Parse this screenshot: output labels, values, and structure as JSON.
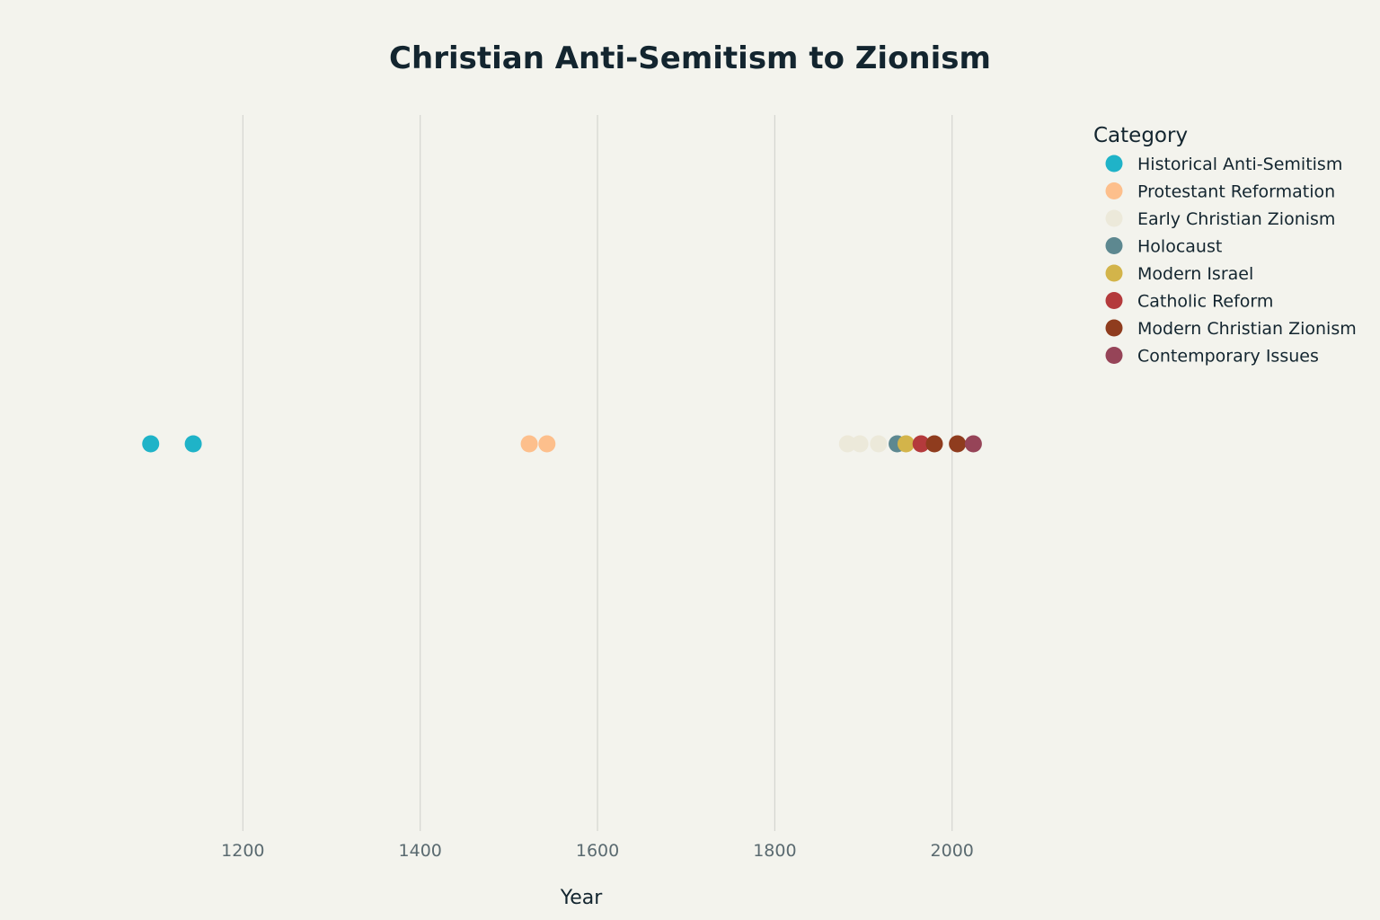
{
  "chart_data": {
    "type": "scatter",
    "title": "Christian Anti-Semitism to Zionism",
    "xlabel": "Year",
    "ylabel": "",
    "xlim": [
      1076,
      2130
    ],
    "xticks": [
      1200,
      1400,
      1600,
      1800,
      2000
    ],
    "grid": true,
    "legend_title": "Category",
    "legend_position": "top-right",
    "series": [
      {
        "name": "Historical Anti-Semitism",
        "color": "#1fb3c8",
        "x": [
          1096,
          1144
        ]
      },
      {
        "name": "Protestant Reformation",
        "color": "#fdbf8c",
        "x": [
          1523,
          1543
        ]
      },
      {
        "name": "Early Christian Zionism",
        "color": "#ece9da",
        "x": [
          1882,
          1896,
          1917
        ]
      },
      {
        "name": "Holocaust",
        "color": "#5d8890",
        "x": [
          1938
        ]
      },
      {
        "name": "Modern Israel",
        "color": "#d3b44a",
        "x": [
          1948
        ]
      },
      {
        "name": "Catholic Reform",
        "color": "#b43a3c",
        "x": [
          1965
        ]
      },
      {
        "name": "Modern Christian Zionism",
        "color": "#8f3c1e",
        "x": [
          1980,
          2006
        ]
      },
      {
        "name": "Contemporary Issues",
        "color": "#964458",
        "x": [
          2024
        ]
      }
    ]
  }
}
